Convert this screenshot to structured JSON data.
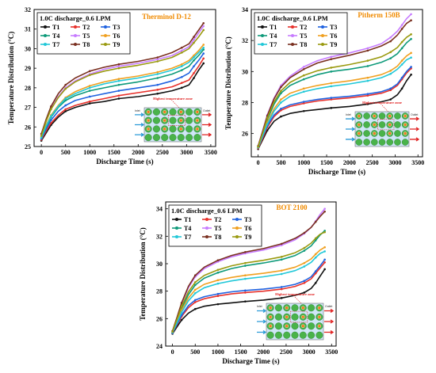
{
  "chart_data": [
    {
      "type": "line",
      "title": "Therminol D-12",
      "legend_title": "1.0C discharge_0.6 LPM",
      "xlabel": "Discharge Time (s)",
      "ylabel": "Temperature Distribution (°C)",
      "xlim": [
        -150,
        3600
      ],
      "ylim": [
        25,
        32
      ],
      "xticks": [
        "0",
        "500",
        "1000",
        "1500",
        "2000",
        "2500",
        "3000",
        "3500"
      ],
      "yticks": [
        "25",
        "26",
        "27",
        "28",
        "29",
        "30",
        "31",
        "32"
      ],
      "legend_position": "top-left",
      "grid": false,
      "annotation": "Highest temperature zone",
      "inset_labels": [
        "Inlet",
        "Outlet"
      ],
      "x": [
        0,
        100,
        200,
        350,
        500,
        700,
        1000,
        1300,
        1600,
        2000,
        2400,
        2700,
        2900,
        3050,
        3150,
        3250,
        3350
      ],
      "series": [
        {
          "name": "T1",
          "color": "#111111",
          "values": [
            25.3,
            25.7,
            26.1,
            26.5,
            26.8,
            27.0,
            27.2,
            27.3,
            27.45,
            27.55,
            27.7,
            27.85,
            28.0,
            28.15,
            28.5,
            28.9,
            29.25
          ]
        },
        {
          "name": "T2",
          "color": "#e8312b",
          "values": [
            25.35,
            25.8,
            26.2,
            26.6,
            26.9,
            27.1,
            27.3,
            27.45,
            27.6,
            27.75,
            27.9,
            28.05,
            28.25,
            28.4,
            28.75,
            29.1,
            29.5
          ]
        },
        {
          "name": "T3",
          "color": "#1f62e0",
          "values": [
            25.4,
            25.9,
            26.35,
            26.8,
            27.1,
            27.35,
            27.55,
            27.7,
            27.85,
            28.0,
            28.15,
            28.35,
            28.55,
            28.75,
            29.1,
            29.4,
            29.75
          ]
        },
        {
          "name": "T4",
          "color": "#0e9a7a",
          "values": [
            25.45,
            26.0,
            26.5,
            27.0,
            27.35,
            27.6,
            27.85,
            28.0,
            28.15,
            28.3,
            28.5,
            28.7,
            28.9,
            29.1,
            29.4,
            29.65,
            29.95
          ]
        },
        {
          "name": "T5",
          "color": "#c77cff",
          "values": [
            25.6,
            26.3,
            26.95,
            27.55,
            28.0,
            28.35,
            28.7,
            28.95,
            29.1,
            29.25,
            29.45,
            29.65,
            29.9,
            30.1,
            30.45,
            30.8,
            31.15
          ]
        },
        {
          "name": "T6",
          "color": "#f0a020",
          "values": [
            25.5,
            26.1,
            26.6,
            27.1,
            27.5,
            27.8,
            28.1,
            28.3,
            28.45,
            28.6,
            28.8,
            29.0,
            29.2,
            29.4,
            29.65,
            29.9,
            30.2
          ]
        },
        {
          "name": "T7",
          "color": "#22c8d8",
          "values": [
            25.45,
            26.05,
            26.55,
            27.05,
            27.45,
            27.7,
            28.0,
            28.2,
            28.35,
            28.5,
            28.7,
            28.9,
            29.1,
            29.3,
            29.55,
            29.8,
            30.05
          ]
        },
        {
          "name": "T8",
          "color": "#7a3020",
          "values": [
            25.65,
            26.4,
            27.05,
            27.7,
            28.15,
            28.5,
            28.85,
            29.05,
            29.2,
            29.35,
            29.55,
            29.8,
            30.05,
            30.25,
            30.6,
            30.95,
            31.3
          ]
        },
        {
          "name": "T9",
          "color": "#9a9a10",
          "values": [
            25.55,
            26.3,
            26.9,
            27.5,
            27.95,
            28.3,
            28.65,
            28.85,
            29.0,
            29.15,
            29.35,
            29.55,
            29.8,
            30.0,
            30.3,
            30.6,
            30.95
          ]
        }
      ]
    },
    {
      "type": "line",
      "title": "Pitherm 150B",
      "legend_title": "1.0C discharge_0.6 LPM",
      "xlabel": "Discharge Time (s)",
      "ylabel": "Temperature Distribution (°C)",
      "xlim": [
        -150,
        3600
      ],
      "ylim": [
        24.5,
        34
      ],
      "xticks": [
        "0",
        "500",
        "1000",
        "1500",
        "2000",
        "2500",
        "3000",
        "3500"
      ],
      "yticks": [
        "26",
        "28",
        "30",
        "32",
        "34"
      ],
      "legend_position": "top-left",
      "grid": false,
      "annotation": "Highest temperature zone",
      "inset_labels": [
        "Inlet",
        "Outlet"
      ],
      "x": [
        0,
        100,
        200,
        350,
        500,
        700,
        1000,
        1300,
        1600,
        2000,
        2400,
        2700,
        2900,
        3050,
        3150,
        3250,
        3350
      ],
      "series": [
        {
          "name": "T1",
          "color": "#111111",
          "values": [
            25.0,
            25.6,
            26.2,
            26.8,
            27.1,
            27.3,
            27.45,
            27.55,
            27.65,
            27.75,
            27.9,
            28.05,
            28.2,
            28.5,
            28.9,
            29.4,
            29.8
          ]
        },
        {
          "name": "T2",
          "color": "#e8312b",
          "values": [
            25.05,
            25.7,
            26.4,
            27.1,
            27.5,
            27.75,
            27.95,
            28.1,
            28.2,
            28.3,
            28.45,
            28.6,
            28.8,
            29.1,
            29.5,
            29.9,
            30.2
          ]
        },
        {
          "name": "T3",
          "color": "#1f62e0",
          "values": [
            25.1,
            25.8,
            26.5,
            27.2,
            27.6,
            27.85,
            28.05,
            28.2,
            28.3,
            28.4,
            28.55,
            28.7,
            28.9,
            29.2,
            29.6,
            30.0,
            30.3
          ]
        },
        {
          "name": "T4",
          "color": "#0e9a7a",
          "values": [
            25.15,
            26.0,
            26.9,
            27.9,
            28.6,
            29.1,
            29.5,
            29.8,
            30.0,
            30.15,
            30.35,
            30.6,
            30.85,
            31.15,
            31.5,
            31.85,
            32.1
          ]
        },
        {
          "name": "T5",
          "color": "#c77cff",
          "values": [
            25.2,
            26.2,
            27.2,
            28.3,
            29.1,
            29.7,
            30.3,
            30.7,
            30.95,
            31.2,
            31.5,
            31.8,
            32.2,
            32.6,
            33.0,
            33.4,
            33.7
          ]
        },
        {
          "name": "T6",
          "color": "#f0a020",
          "values": [
            25.1,
            25.9,
            26.7,
            27.6,
            28.2,
            28.6,
            28.9,
            29.1,
            29.25,
            29.4,
            29.6,
            29.8,
            30.05,
            30.35,
            30.7,
            31.0,
            31.2
          ]
        },
        {
          "name": "T7",
          "color": "#22c8d8",
          "values": [
            25.1,
            25.85,
            26.6,
            27.45,
            28.0,
            28.4,
            28.7,
            28.9,
            29.05,
            29.2,
            29.4,
            29.6,
            29.85,
            30.15,
            30.45,
            30.75,
            30.9
          ]
        },
        {
          "name": "T8",
          "color": "#7a3020",
          "values": [
            25.2,
            26.15,
            27.15,
            28.25,
            29.0,
            29.6,
            30.15,
            30.55,
            30.8,
            31.05,
            31.35,
            31.65,
            31.95,
            32.35,
            32.75,
            33.1,
            33.3
          ]
        },
        {
          "name": "T9",
          "color": "#9a9a10",
          "values": [
            25.15,
            26.05,
            27.0,
            28.05,
            28.75,
            29.3,
            29.75,
            30.05,
            30.25,
            30.45,
            30.7,
            30.95,
            31.25,
            31.55,
            31.9,
            32.2,
            32.4
          ]
        }
      ]
    },
    {
      "type": "line",
      "title": "BOT 2100",
      "legend_title": "1.0C discharge_0.6 LPM",
      "xlabel": "Discharge Time (s)",
      "ylabel": "Temperature Distribution (°C)",
      "xlim": [
        -150,
        3600
      ],
      "ylim": [
        24,
        34.5
      ],
      "xticks": [
        "0",
        "500",
        "1000",
        "1500",
        "2000",
        "2500",
        "3000",
        "3500"
      ],
      "yticks": [
        "24",
        "26",
        "28",
        "30",
        "32",
        "34"
      ],
      "legend_position": "top-left",
      "grid": false,
      "annotation": "Highest temperature zone",
      "inset_labels": [
        "Inlet",
        "Outlet"
      ],
      "x": [
        0,
        100,
        200,
        350,
        500,
        700,
        1000,
        1300,
        1600,
        2000,
        2400,
        2700,
        2900,
        3050,
        3150,
        3250,
        3350
      ],
      "series": [
        {
          "name": "T1",
          "color": "#111111",
          "values": [
            24.9,
            25.4,
            25.9,
            26.4,
            26.7,
            26.9,
            27.05,
            27.15,
            27.25,
            27.35,
            27.5,
            27.7,
            27.9,
            28.2,
            28.6,
            29.1,
            29.6
          ]
        },
        {
          "name": "T2",
          "color": "#e8312b",
          "values": [
            24.95,
            25.55,
            26.15,
            26.8,
            27.2,
            27.45,
            27.65,
            27.8,
            27.9,
            28.0,
            28.15,
            28.35,
            28.6,
            28.9,
            29.3,
            29.7,
            30.1
          ]
        },
        {
          "name": "T3",
          "color": "#1f62e0",
          "values": [
            24.95,
            25.6,
            26.25,
            26.95,
            27.35,
            27.6,
            27.8,
            27.95,
            28.05,
            28.15,
            28.3,
            28.5,
            28.75,
            29.05,
            29.45,
            29.85,
            30.3
          ]
        },
        {
          "name": "T4",
          "color": "#0e9a7a",
          "values": [
            25.0,
            25.85,
            26.75,
            27.75,
            28.45,
            28.95,
            29.35,
            29.65,
            29.85,
            30.05,
            30.3,
            30.6,
            30.95,
            31.3,
            31.7,
            32.1,
            32.4
          ]
        },
        {
          "name": "T5",
          "color": "#c77cff",
          "values": [
            25.05,
            26.05,
            27.1,
            28.25,
            29.05,
            29.65,
            30.15,
            30.5,
            30.75,
            31.0,
            31.35,
            31.75,
            32.2,
            32.65,
            33.1,
            33.6,
            34.0
          ]
        },
        {
          "name": "T6",
          "color": "#f0a020",
          "values": [
            25.0,
            25.8,
            26.6,
            27.5,
            28.1,
            28.5,
            28.8,
            29.0,
            29.15,
            29.3,
            29.5,
            29.75,
            30.05,
            30.35,
            30.7,
            31.0,
            31.2
          ]
        },
        {
          "name": "T7",
          "color": "#22c8d8",
          "values": [
            25.0,
            25.7,
            26.45,
            27.3,
            27.85,
            28.25,
            28.55,
            28.75,
            28.9,
            29.05,
            29.25,
            29.5,
            29.8,
            30.1,
            30.45,
            30.75,
            30.9
          ]
        },
        {
          "name": "T8",
          "color": "#7a3020",
          "values": [
            25.1,
            26.1,
            27.15,
            28.35,
            29.15,
            29.75,
            30.25,
            30.6,
            30.85,
            31.1,
            31.45,
            31.85,
            32.25,
            32.65,
            33.05,
            33.45,
            33.8
          ]
        },
        {
          "name": "T9",
          "color": "#9a9a10",
          "values": [
            25.05,
            25.95,
            26.9,
            27.95,
            28.65,
            29.15,
            29.55,
            29.85,
            30.05,
            30.25,
            30.5,
            30.8,
            31.15,
            31.5,
            31.85,
            32.15,
            32.3
          ]
        }
      ]
    }
  ]
}
